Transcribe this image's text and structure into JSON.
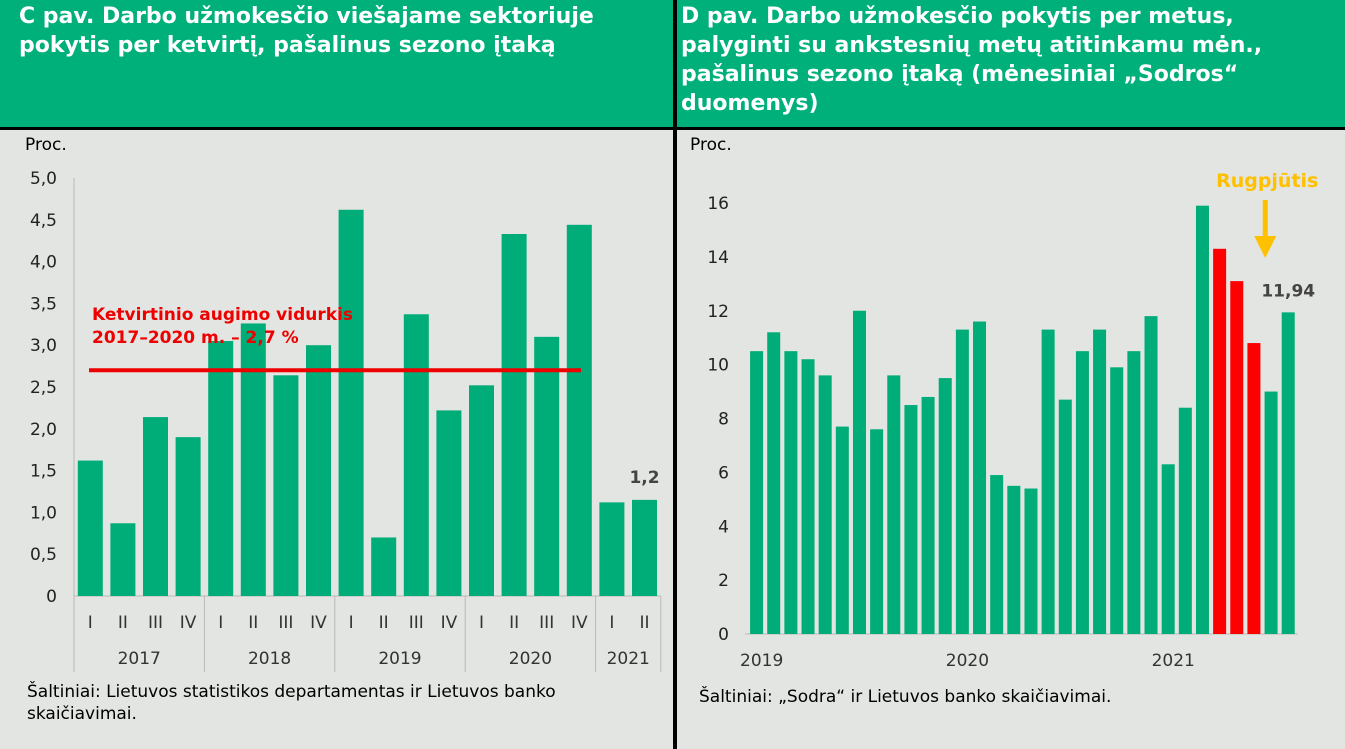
{
  "charts": {
    "left": {
      "title": "C pav. Darbo užmokesčio viešajame sektoriuje pokytis per ketvirtį, pašalinus sezono įtaką",
      "unit_label": "Proc.",
      "source": "Šaltiniai: Lietuvos statistikos departamentas ir Lietuvos banko skaičiavimai."
    },
    "right": {
      "title": "D pav. Darbo užmokesčio pokytis per metus, palyginti su ankstesnių metų atitinkamu mėn., pašalinus sezono įtaką (mėnesiniai „Sodros“ duomenys)",
      "unit_label": "Proc.",
      "source": "Šaltiniai: „Sodra“ ir Lietuvos banko skaičiavimai."
    }
  },
  "chart_data": [
    {
      "type": "bar",
      "title": "C pav. Darbo užmokesčio viešajame sektoriuje pokytis per ketvirtį, pašalinus sezono įtaką",
      "ylabel": "Proc.",
      "ylim": [
        0,
        5.0
      ],
      "yticks": [
        "0",
        "0,5",
        "1,0",
        "1,5",
        "2,0",
        "2,5",
        "3,0",
        "3,5",
        "4,0",
        "4,5",
        "5,0"
      ],
      "categories": [
        "I",
        "II",
        "III",
        "IV",
        "I",
        "II",
        "III",
        "IV",
        "I",
        "II",
        "III",
        "IV",
        "I",
        "II",
        "III",
        "IV",
        "I",
        "II"
      ],
      "groups": [
        {
          "label": "2017",
          "count": 4
        },
        {
          "label": "2018",
          "count": 4
        },
        {
          "label": "2019",
          "count": 4
        },
        {
          "label": "2020",
          "count": 4
        },
        {
          "label": "2021",
          "count": 2
        }
      ],
      "values": [
        1.62,
        0.87,
        2.14,
        1.9,
        3.05,
        3.26,
        2.64,
        3.0,
        4.62,
        0.7,
        3.37,
        2.22,
        2.52,
        4.33,
        3.1,
        4.44,
        1.12,
        1.15
      ],
      "bar_color": "#00ac78",
      "reference_line": {
        "value": 2.7,
        "label_line1": "Ketvirtinio augimo vidurkis",
        "label_line2": "2017–2020 m. – 2,7 %",
        "color": "#ee0000"
      },
      "data_label": {
        "index": 17,
        "text": "1,2"
      },
      "grid": false
    },
    {
      "type": "bar",
      "title": "D pav. Darbo užmokesčio pokytis per metus, palyginti su ankstesnių metų atitinkamu mėn., pašalinus sezono įtaką (mėnesiniai „Sodros“ duomenys)",
      "ylabel": "Proc.",
      "ylim": [
        0,
        16
      ],
      "yticks": [
        "0",
        "2",
        "4",
        "6",
        "8",
        "10",
        "12",
        "14",
        "16"
      ],
      "x_labels": [
        "2019",
        "2020",
        "2021"
      ],
      "values": [
        10.5,
        11.2,
        10.5,
        10.2,
        9.6,
        7.7,
        12.0,
        7.6,
        9.6,
        8.5,
        8.8,
        9.5,
        11.3,
        11.6,
        5.9,
        5.5,
        5.4,
        11.3,
        8.7,
        10.5,
        11.3,
        9.9,
        10.5,
        11.8,
        6.3,
        8.4,
        15.9,
        14.3,
        13.1,
        10.8,
        9.0,
        11.94
      ],
      "bar_color": "#00ac78",
      "highlight_color": "#ff0000",
      "highlight_indices": [
        27,
        28,
        29
      ],
      "data_label": {
        "index": 31,
        "text": "11,94"
      },
      "annotation": {
        "text": "Rugpjūtis",
        "color": "#ffc000"
      },
      "grid": false
    }
  ]
}
